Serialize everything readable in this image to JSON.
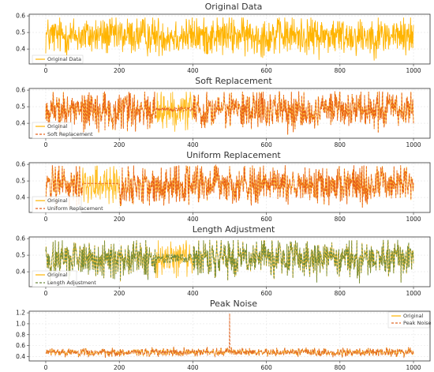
{
  "colors": {
    "original": "#FFB400",
    "modified": "#E8601C",
    "length_adjusted": "#6E8B3D",
    "peak_noise": "#E06A2A",
    "grid": "#e6e6e6",
    "axis": "#333333"
  },
  "chart_data": [
    {
      "type": "line",
      "title": "Original Data",
      "xlabel": "",
      "ylabel": "",
      "xlim": [
        -45,
        1045
      ],
      "ylim": [
        0.31,
        0.61
      ],
      "x_ticks": [
        0,
        200,
        400,
        600,
        800,
        1000
      ],
      "x_tick_labels": [
        "0",
        "200",
        "400",
        "600",
        "800",
        "1000"
      ],
      "y_ticks": [
        0.4,
        0.5,
        0.6
      ],
      "y_tick_labels": [
        "0.4",
        "0.5",
        "0.6"
      ],
      "grid": true,
      "legend_position": "bottom-left",
      "series": [
        {
          "name": "Original Data",
          "style": "solid",
          "color": "#FFB400",
          "x_start": 0,
          "x_end": 1000,
          "n_points": 1001,
          "value_center": 0.48,
          "value_min": 0.33,
          "value_max": 0.59,
          "pattern": "dense random noise across full range"
        }
      ]
    },
    {
      "type": "line",
      "title": "Soft Replacement",
      "xlabel": "",
      "ylabel": "",
      "xlim": [
        -45,
        1045
      ],
      "ylim": [
        0.31,
        0.61
      ],
      "x_ticks": [
        0,
        200,
        400,
        600,
        800,
        1000
      ],
      "x_tick_labels": [
        "0",
        "200",
        "400",
        "600",
        "800",
        "1000"
      ],
      "y_ticks": [
        0.4,
        0.5,
        0.6
      ],
      "y_tick_labels": [
        "0.4",
        "0.5",
        "0.6"
      ],
      "grid": true,
      "legend_position": "bottom-left",
      "series": [
        {
          "name": "Original",
          "style": "solid",
          "color": "#FFB400",
          "x_start": 0,
          "x_end": 1000,
          "n_points": 1001,
          "value_center": 0.48,
          "value_min": 0.33,
          "value_max": 0.59
        },
        {
          "name": "Soft Replacement",
          "style": "dashed",
          "color": "#E8601C",
          "x_start": 0,
          "x_end": 1000,
          "n_points": 1001,
          "value_center": 0.48,
          "value_min": 0.33,
          "value_max": 0.59,
          "replaced_range": [
            300,
            400
          ],
          "replaced_value": 0.485,
          "replaced_amplitude": 0.012
        }
      ]
    },
    {
      "type": "line",
      "title": "Uniform Replacement",
      "xlabel": "",
      "ylabel": "",
      "xlim": [
        -45,
        1045
      ],
      "ylim": [
        0.31,
        0.61
      ],
      "x_ticks": [
        0,
        200,
        400,
        600,
        800,
        1000
      ],
      "x_tick_labels": [
        "0",
        "200",
        "400",
        "600",
        "800",
        "1000"
      ],
      "y_ticks": [
        0.4,
        0.5,
        0.6
      ],
      "y_tick_labels": [
        "0.4",
        "0.5",
        "0.6"
      ],
      "grid": true,
      "legend_position": "bottom-left",
      "series": [
        {
          "name": "Original",
          "style": "solid",
          "color": "#FFB400",
          "x_start": 0,
          "x_end": 1000,
          "n_points": 1001,
          "value_center": 0.48,
          "value_min": 0.33,
          "value_max": 0.59
        },
        {
          "name": "Uniform Replacement",
          "style": "dashed",
          "color": "#E8601C",
          "x_start": 0,
          "x_end": 1000,
          "n_points": 1001,
          "value_center": 0.48,
          "value_min": 0.33,
          "value_max": 0.59,
          "replaced_range": [
            100,
            200
          ],
          "replaced_value": 0.485,
          "replaced_amplitude": 0.0
        }
      ]
    },
    {
      "type": "line",
      "title": "Length Adjustment",
      "xlabel": "",
      "ylabel": "",
      "xlim": [
        -45,
        1045
      ],
      "ylim": [
        0.31,
        0.61
      ],
      "x_ticks": [
        0,
        200,
        400,
        600,
        800,
        1000
      ],
      "x_tick_labels": [
        "0",
        "200",
        "400",
        "600",
        "800",
        "1000"
      ],
      "y_ticks": [
        0.4,
        0.5,
        0.6
      ],
      "y_tick_labels": [
        "0.4",
        "0.5",
        "0.6"
      ],
      "grid": true,
      "legend_position": "bottom-left",
      "series": [
        {
          "name": "Original",
          "style": "solid",
          "color": "#FFB400",
          "x_start": 0,
          "x_end": 1000,
          "n_points": 1001,
          "value_center": 0.48,
          "value_min": 0.33,
          "value_max": 0.59
        },
        {
          "name": "Length Adjustment",
          "style": "dashed",
          "color": "#6E8B3D",
          "x_start": 0,
          "x_end": 1000,
          "n_points": 1001,
          "value_center": 0.48,
          "value_min": 0.33,
          "value_max": 0.59,
          "adjusted_range": [
            300,
            400
          ],
          "adjusted_amplitude": 0.03
        }
      ]
    },
    {
      "type": "line",
      "title": "Peak Noise",
      "xlabel": "",
      "ylabel": "",
      "xlim": [
        -45,
        1045
      ],
      "ylim": [
        0.32,
        1.23
      ],
      "x_ticks": [
        0,
        200,
        400,
        600,
        800,
        1000
      ],
      "x_tick_labels": [
        "0",
        "200",
        "400",
        "600",
        "800",
        "1000"
      ],
      "y_ticks": [
        0.4,
        0.6,
        0.8,
        1.0,
        1.2
      ],
      "y_tick_labels": [
        "0.4",
        "0.6",
        "0.8",
        "1.0",
        "1.2"
      ],
      "grid": true,
      "legend_position": "top-right",
      "series": [
        {
          "name": "Original",
          "style": "solid",
          "color": "#FFB400",
          "x_start": 0,
          "x_end": 1000,
          "n_points": 1001,
          "value_center": 0.48,
          "value_min": 0.38,
          "value_max": 0.58
        },
        {
          "name": "Peak Noise",
          "style": "dashed",
          "color": "#E06A2A",
          "x_start": 0,
          "x_end": 1000,
          "n_points": 1001,
          "value_center": 0.48,
          "value_min": 0.38,
          "value_max": 0.58,
          "peak_x": 500,
          "peak_value": 1.19
        }
      ]
    }
  ]
}
